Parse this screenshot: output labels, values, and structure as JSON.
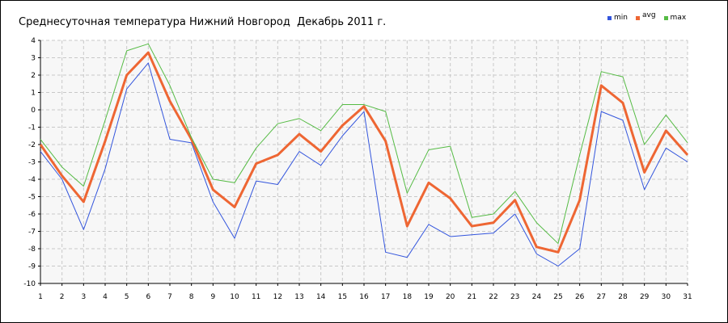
{
  "chart_data": {
    "type": "line",
    "title": "Среднесуточная температура Нижний Новгород  Декабрь 2011 г.",
    "xlabel": "",
    "ylabel": "",
    "x": [
      1,
      2,
      3,
      4,
      5,
      6,
      7,
      8,
      9,
      10,
      11,
      12,
      13,
      14,
      15,
      16,
      17,
      18,
      19,
      20,
      21,
      22,
      23,
      24,
      25,
      26,
      27,
      28,
      29,
      30,
      31
    ],
    "ylim": [
      -10,
      4
    ],
    "yticks": [
      4,
      3,
      2,
      1,
      0,
      -1,
      -2,
      -3,
      -4,
      -5,
      -6,
      -7,
      -8,
      -9,
      -10
    ],
    "grid": true,
    "legend_position": "top-right",
    "series": [
      {
        "name": "min",
        "color": "#3355dd",
        "values": [
          -2.4,
          -4.0,
          -6.9,
          -3.4,
          1.2,
          2.7,
          -1.7,
          -1.9,
          -5.3,
          -7.4,
          -4.1,
          -4.3,
          -2.4,
          -3.2,
          -1.5,
          -0.1,
          -8.2,
          -8.5,
          -6.6,
          -7.3,
          -7.2,
          -7.1,
          -6.0,
          -8.3,
          -9.0,
          -8.0,
          -0.1,
          -0.6,
          -4.6,
          -2.2,
          -3.0
        ]
      },
      {
        "name": "avg",
        "color": "#ee6633",
        "values": [
          -2.0,
          -3.8,
          -5.3,
          -1.8,
          2.0,
          3.3,
          0.5,
          -1.7,
          -4.6,
          -5.6,
          -3.1,
          -2.6,
          -1.4,
          -2.4,
          -0.9,
          0.2,
          -1.8,
          -6.7,
          -4.2,
          -5.1,
          -6.7,
          -6.5,
          -5.2,
          -7.9,
          -8.2,
          -5.2,
          1.4,
          0.4,
          -3.6,
          -1.2,
          -2.6
        ]
      },
      {
        "name": "max",
        "color": "#55bb44",
        "values": [
          -1.7,
          -3.3,
          -4.4,
          -0.6,
          3.4,
          3.8,
          1.4,
          -1.6,
          -4.0,
          -4.2,
          -2.2,
          -0.8,
          -0.5,
          -1.2,
          0.3,
          0.3,
          -0.1,
          -4.8,
          -2.3,
          -2.1,
          -6.2,
          -6.0,
          -4.7,
          -6.5,
          -7.7,
          -2.6,
          2.2,
          1.9,
          -2.0,
          -0.3,
          -1.9
        ]
      }
    ]
  }
}
